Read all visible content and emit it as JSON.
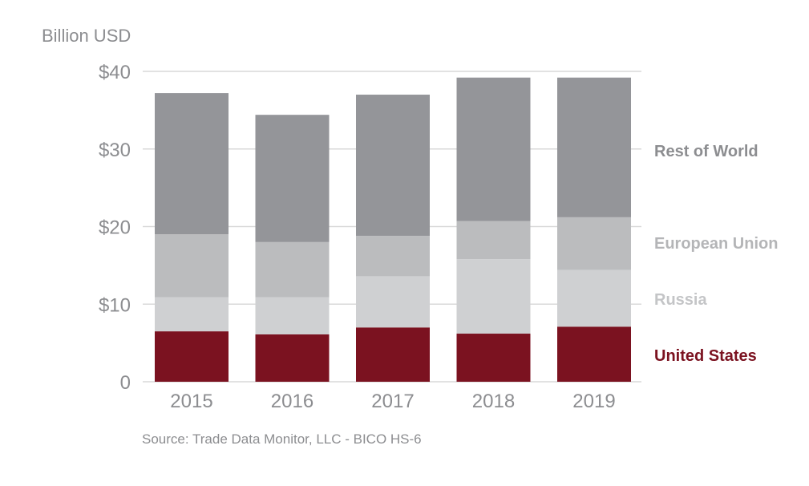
{
  "chart_data": {
    "type": "bar",
    "stacked": true,
    "ylabel": "Billion USD",
    "source": "Source: Trade Data Monitor, LLC - BICO HS-6",
    "categories": [
      "2015",
      "2016",
      "2017",
      "2018",
      "2019"
    ],
    "ylim": [
      0,
      40
    ],
    "yticks": [
      0,
      10,
      20,
      30,
      40
    ],
    "ytick_labels": [
      "0",
      "$10",
      "$20",
      "$30",
      "$40"
    ],
    "grid": true,
    "legend_placement": "right",
    "series": [
      {
        "name": "United States",
        "color": "#7b1220",
        "values": [
          6.5,
          6.1,
          7.0,
          6.2,
          7.1
        ]
      },
      {
        "name": "Russia",
        "color": "#cfd0d2",
        "values": [
          4.4,
          4.8,
          6.6,
          9.6,
          7.3
        ]
      },
      {
        "name": "European Union",
        "color": "#bbbcbe",
        "values": [
          8.1,
          7.1,
          5.2,
          4.9,
          6.8
        ]
      },
      {
        "name": "Rest of World",
        "color": "#949599",
        "values": [
          18.2,
          16.4,
          18.2,
          18.5,
          18.0
        ]
      }
    ]
  }
}
